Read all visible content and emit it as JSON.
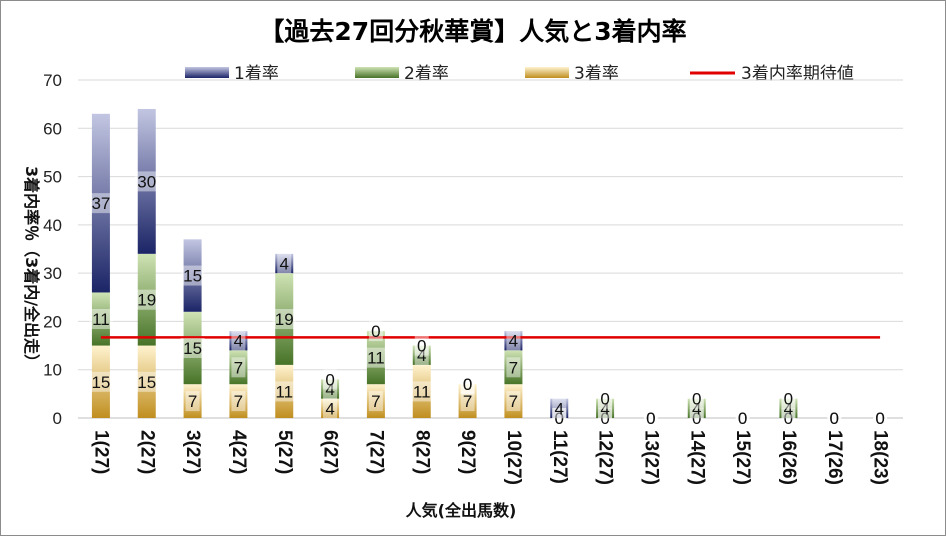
{
  "chart_data": {
    "type": "bar",
    "stacked": true,
    "title": "【過去27回分秋華賞】人気と3着内率",
    "xlabel": "人気(全出馬数)",
    "ylabel": "3着内率％（3着内/全出走）",
    "ylim": [
      0,
      70
    ],
    "yticks": [
      0,
      10,
      20,
      30,
      40,
      50,
      60,
      70
    ],
    "grid": true,
    "legend_position": "top",
    "categories": [
      "1(27)",
      "2(27)",
      "3(27)",
      "4(27)",
      "5(27)",
      "6(27)",
      "7(27)",
      "8(27)",
      "9(27)",
      "10(27)",
      "11(27)",
      "12(27)",
      "13(27)",
      "14(27)",
      "15(27)",
      "16(26)",
      "17(26)",
      "18(23)"
    ],
    "series": [
      {
        "name": "3着率",
        "color": "#d4a437",
        "values": [
          15,
          15,
          7,
          7,
          11,
          4,
          7,
          11,
          7,
          7,
          0,
          0,
          0,
          0,
          0,
          0,
          0,
          0
        ]
      },
      {
        "name": "2着率",
        "color": "#5f8f3a",
        "values": [
          11,
          19,
          15,
          7,
          19,
          4,
          11,
          4,
          0,
          7,
          0,
          4,
          0,
          4,
          0,
          4,
          0,
          0
        ]
      },
      {
        "name": "1着率",
        "color": "#2e3d84",
        "values": [
          37,
          30,
          15,
          4,
          4,
          0,
          0,
          0,
          0,
          4,
          4,
          0,
          0,
          0,
          0,
          0,
          0,
          0
        ]
      }
    ],
    "reference_line": {
      "name": "3着内率期待値",
      "value": 16.7,
      "color": "#e00000"
    }
  }
}
